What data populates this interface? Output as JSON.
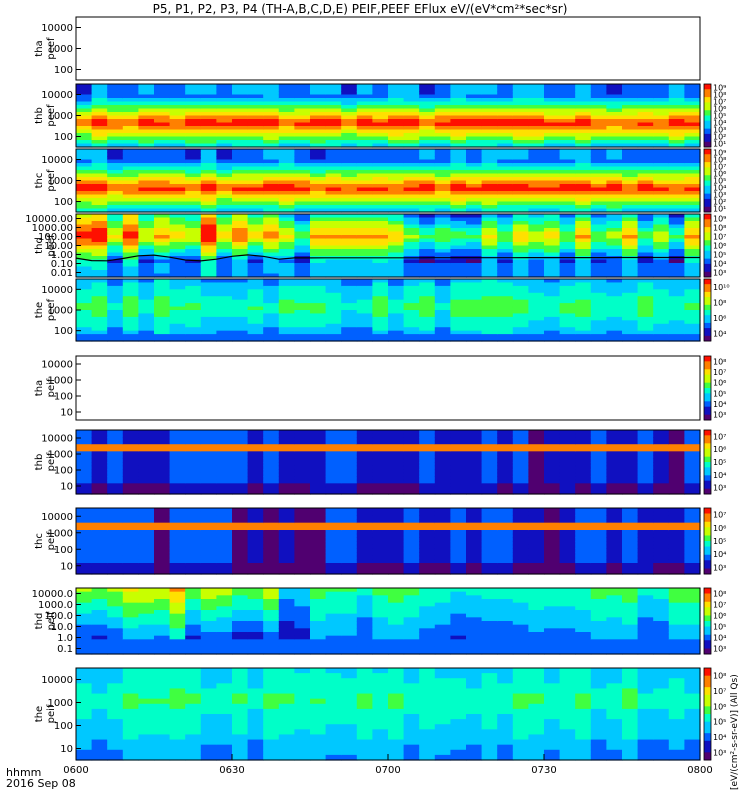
{
  "title": "P5, P1, P2, P3, P4 (TH-A,B,C,D,E) PEIF,PEEF EFlux eV/(eV*cm²*sec*sr)",
  "footer": {
    "axis_label": "hhmm",
    "date": "2016 Sep 08"
  },
  "colorbar_units": "[eV/(cm²-s-sr-eV)] (All Qs)",
  "chart_data": {
    "type": "heatmap",
    "x_ticks": [
      "0600",
      "0630",
      "0700",
      "0730",
      "0800"
    ],
    "x_range": [
      "06:00",
      "08:00"
    ],
    "panels": [
      {
        "name": "tha peef",
        "label_top": "tha",
        "label_bottom": "peef",
        "y_ticks": [
          "10000",
          "1000",
          "100"
        ],
        "y_scale": "log",
        "has_data": false
      },
      {
        "name": "thb peef",
        "label_top": "thb",
        "label_bottom": "peef",
        "y_ticks": [
          "10000",
          "1000",
          "100"
        ],
        "y_scale": "log",
        "has_data": true,
        "profile": "electron-hot",
        "colorbar": [
          "10⁹",
          "10⁸",
          "10⁷",
          "10⁶",
          "10⁵",
          "10⁴",
          "10³",
          "10²",
          "10¹"
        ]
      },
      {
        "name": "thc peef",
        "label_top": "thc",
        "label_bottom": "peef",
        "y_ticks": [
          "10000",
          "1000",
          "100"
        ],
        "y_scale": "log",
        "has_data": true,
        "profile": "electron-hot",
        "colorbar": [
          "10⁹",
          "10⁸",
          "10⁷",
          "10⁶",
          "10⁵",
          "10⁴",
          "10³",
          "10²",
          "10¹"
        ]
      },
      {
        "name": "thd peef",
        "label_top": "thd",
        "label_bottom": "peef",
        "y_ticks": [
          "10000.00",
          "1000.00",
          "100.00",
          "10.00",
          "1.00",
          "0.10",
          "0.01"
        ],
        "y_scale": "log",
        "has_data": true,
        "profile": "electron-warm",
        "colorbar": [
          "10⁹",
          "10⁸",
          "10⁷",
          "10⁶",
          "10⁵",
          "10⁴",
          "10³"
        ]
      },
      {
        "name": "the peef",
        "label_top": "the",
        "label_bottom": "peef",
        "y_ticks": [
          "10000",
          "1000",
          "100"
        ],
        "y_scale": "log",
        "has_data": true,
        "profile": "electron-green",
        "colorbar": [
          "10¹⁰",
          "10⁸",
          "10⁶",
          "10⁴"
        ]
      },
      {
        "name": "tha peif",
        "label_top": "tha",
        "label_bottom": "peif",
        "y_ticks": [
          "10000",
          "1000",
          "100",
          "10"
        ],
        "y_scale": "log",
        "has_data": false,
        "colorbar": [
          "10⁸",
          "10⁷",
          "10⁶",
          "10⁵",
          "10⁴",
          "10³"
        ]
      },
      {
        "name": "thb peif",
        "label_top": "thb",
        "label_bottom": "peif",
        "y_ticks": [
          "10000",
          "1000",
          "100",
          "10"
        ],
        "y_scale": "log",
        "has_data": true,
        "profile": "ion-dark",
        "colorbar": [
          "10⁷",
          "10⁶",
          "10⁵",
          "10⁴",
          "10³"
        ]
      },
      {
        "name": "thc peif",
        "label_top": "thc",
        "label_bottom": "peif",
        "y_ticks": [
          "10000",
          "1000",
          "100",
          "10"
        ],
        "y_scale": "log",
        "has_data": true,
        "profile": "ion-dark",
        "colorbar": [
          "10⁷",
          "10⁶",
          "10⁵",
          "10⁴",
          "10³"
        ]
      },
      {
        "name": "thd peif",
        "label_top": "thd",
        "label_bottom": "peif",
        "y_ticks": [
          "10000.0",
          "1000.0",
          "100.0",
          "10.0",
          "1.0",
          "0.1"
        ],
        "y_scale": "log",
        "has_data": true,
        "profile": "ion-warm",
        "colorbar": [
          "10⁸",
          "10⁷",
          "10⁶",
          "10⁵",
          "10⁴",
          "10³"
        ]
      },
      {
        "name": "the peif",
        "label_top": "the",
        "label_bottom": "peif",
        "y_ticks": [
          "10000",
          "1000",
          "100",
          "10"
        ],
        "y_scale": "log",
        "has_data": true,
        "profile": "ion-green",
        "colorbar": [
          "10⁸",
          "10⁷",
          "10⁶",
          "10⁵",
          "10⁴",
          "10³"
        ]
      }
    ],
    "colormap": [
      "#600080",
      "#0000ff",
      "#00a0ff",
      "#00ffff",
      "#00ff80",
      "#80ff00",
      "#ffff00",
      "#ffa000",
      "#ff0000",
      "#ffffff"
    ]
  }
}
